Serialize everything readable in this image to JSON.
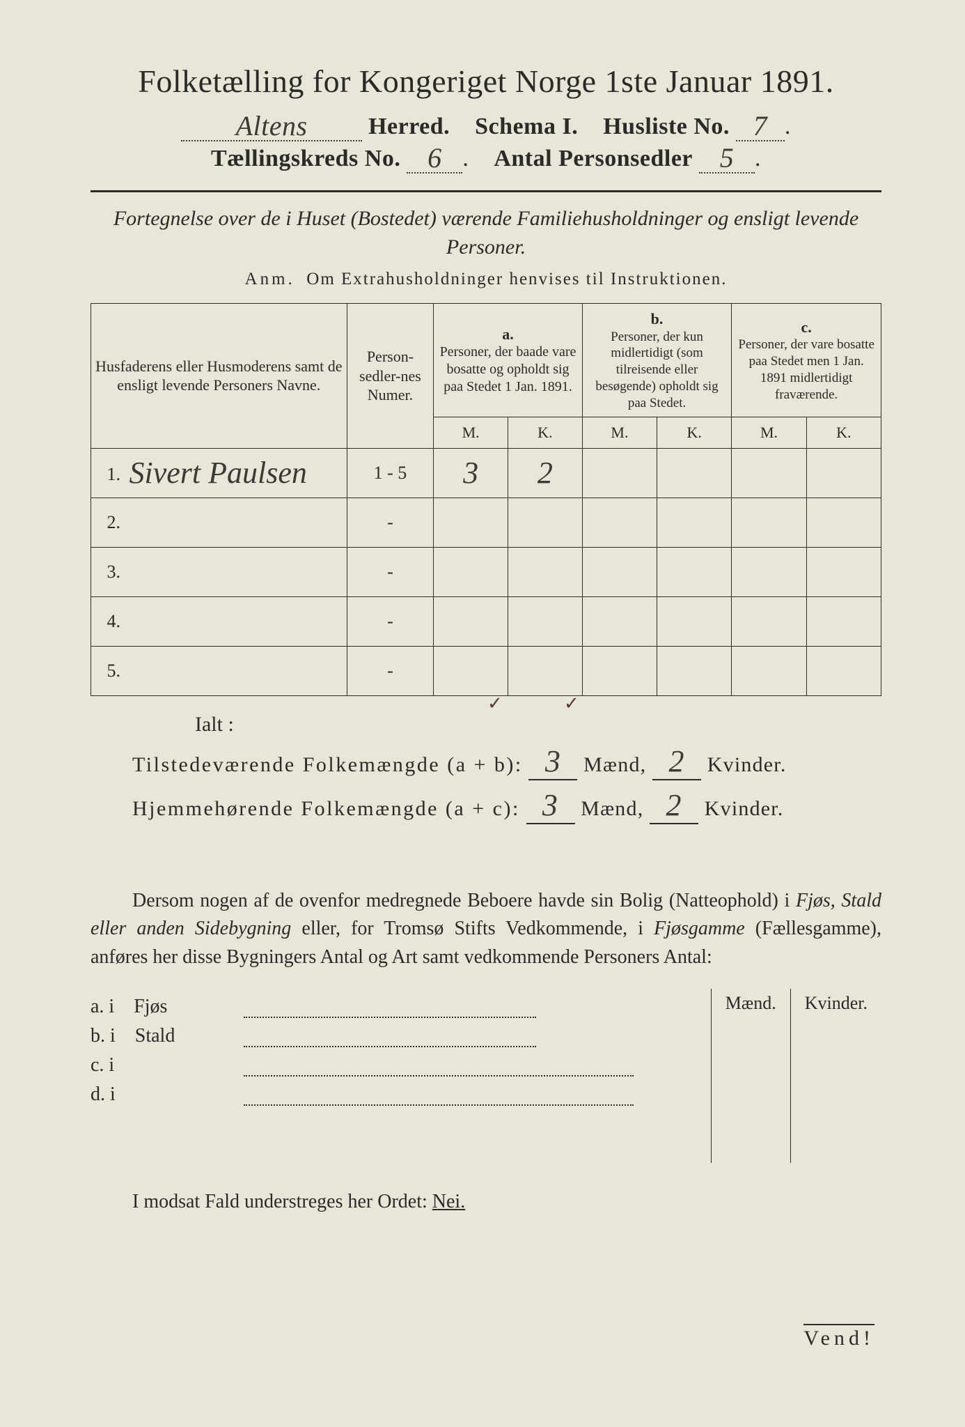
{
  "header": {
    "title": "Folketælling for Kongeriget Norge 1ste Januar 1891.",
    "herred_value": "Altens",
    "herred_label": "Herred.",
    "schema_label": "Schema I.",
    "husliste_label": "Husliste No.",
    "husliste_value": "7",
    "kreds_label": "Tællingskreds No.",
    "kreds_value": "6",
    "antal_label": "Antal Personsedler",
    "antal_value": "5"
  },
  "subtitle": "Fortegnelse over de i Huset (Bostedet) værende Familiehusholdninger og ensligt levende Personer.",
  "anm_label": "Anm.",
  "anm_text": "Om Extrahusholdninger henvises til Instruktionen.",
  "table": {
    "col_name": "Husfaderens eller Husmoderens samt de ensligt levende Personers Navne.",
    "col_num": "Person-sedler-nes Numer.",
    "col_a_label": "a.",
    "col_a_text": "Personer, der baade vare bosatte og opholdt sig paa Stedet 1 Jan. 1891.",
    "col_b_label": "b.",
    "col_b_text": "Personer, der kun midlertidigt (som tilreisende eller besøgende) opholdt sig paa Stedet.",
    "col_c_label": "c.",
    "col_c_text": "Personer, der vare bosatte paa Stedet men 1 Jan. 1891 midlertidigt fraværende.",
    "m": "M.",
    "k": "K.",
    "rows": [
      {
        "n": "1.",
        "name": "Sivert Paulsen",
        "num": "1 - 5",
        "a_m": "3",
        "a_k": "2",
        "b_m": "",
        "b_k": "",
        "c_m": "",
        "c_k": ""
      },
      {
        "n": "2.",
        "name": "",
        "num": "-",
        "a_m": "",
        "a_k": "",
        "b_m": "",
        "b_k": "",
        "c_m": "",
        "c_k": ""
      },
      {
        "n": "3.",
        "name": "",
        "num": "-",
        "a_m": "",
        "a_k": "",
        "b_m": "",
        "b_k": "",
        "c_m": "",
        "c_k": ""
      },
      {
        "n": "4.",
        "name": "",
        "num": "-",
        "a_m": "",
        "a_k": "",
        "b_m": "",
        "b_k": "",
        "c_m": "",
        "c_k": ""
      },
      {
        "n": "5.",
        "name": "",
        "num": "-",
        "a_m": "",
        "a_k": "",
        "b_m": "",
        "b_k": "",
        "c_m": "",
        "c_k": ""
      }
    ],
    "tick_a_m": "✓",
    "tick_a_k": "✓"
  },
  "totals": {
    "ialt": "Ialt :",
    "line1_label": "Tilstedeværende Folkemængde (a + b):",
    "line2_label": "Hjemmehørende Folkemængde (a + c):",
    "maend": "Mænd,",
    "kvinder": "Kvinder.",
    "v1_m": "3",
    "v1_k": "2",
    "v2_m": "3",
    "v2_k": "2"
  },
  "para": {
    "t1": "Dersom nogen af de ovenfor medregnede Beboere havde sin Bolig (Natteophold) i ",
    "i1": "Fjøs, Stald eller anden Sidebygning",
    "t2": " eller, for Tromsø Stifts Vedkommende, i ",
    "i2": "Fjøsgamme",
    "t3": " (Fællesgamme), anføres her disse Bygningers Antal og Art samt vedkommende Personers Antal:"
  },
  "sb": {
    "maend": "Mænd.",
    "kvinder": "Kvinder.",
    "rows": [
      {
        "l": "a.  i",
        "name": "Fjøs"
      },
      {
        "l": "b.  i",
        "name": "Stald"
      },
      {
        "l": "c.  i",
        "name": ""
      },
      {
        "l": "d.  i",
        "name": ""
      }
    ]
  },
  "closing": {
    "text_pre": "I modsat Fald understreges her Ordet: ",
    "nei": "Nei."
  },
  "vend": "Vend!"
}
